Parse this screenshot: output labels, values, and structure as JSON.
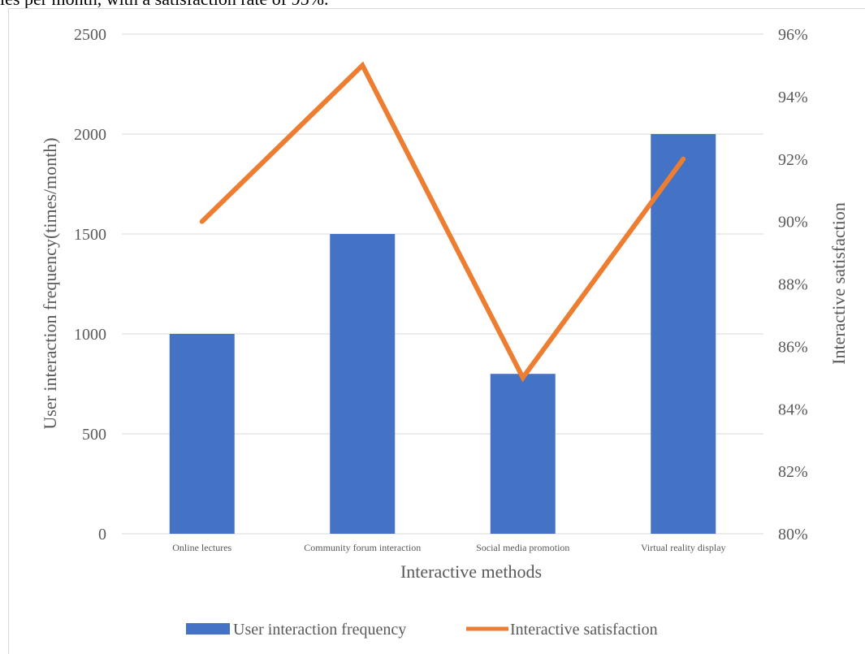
{
  "caption_fragment": "ies per month, with a satisfaction rate of 95%.",
  "chart_data": {
    "type": "bar",
    "title": "",
    "categories": [
      "Online lectures",
      "Community forum interaction",
      "Social media promotion",
      "Virtual reality display"
    ],
    "xlabel": "Interactive methods",
    "ylabel": "User interaction frequency(times/month)",
    "y2label": "Interactive satisfaction",
    "ylim": [
      0,
      2500
    ],
    "y2lim": [
      0.8,
      0.96
    ],
    "yticks": [
      "0",
      "500",
      "1000",
      "1500",
      "2000",
      "2500"
    ],
    "y2ticks": [
      "80%",
      "82%",
      "84%",
      "86%",
      "88%",
      "90%",
      "92%",
      "94%",
      "96%"
    ],
    "grid": true,
    "legend_position": "bottom",
    "series": [
      {
        "name": "User interaction frequency",
        "type": "bar",
        "axis": "left",
        "color": "#4472c4",
        "values": [
          1000,
          1500,
          800,
          2000
        ]
      },
      {
        "name": "Interactive satisfaction",
        "type": "line",
        "axis": "right",
        "color": "#ed7d31",
        "values": [
          0.9,
          0.95,
          0.85,
          0.92
        ]
      }
    ]
  }
}
